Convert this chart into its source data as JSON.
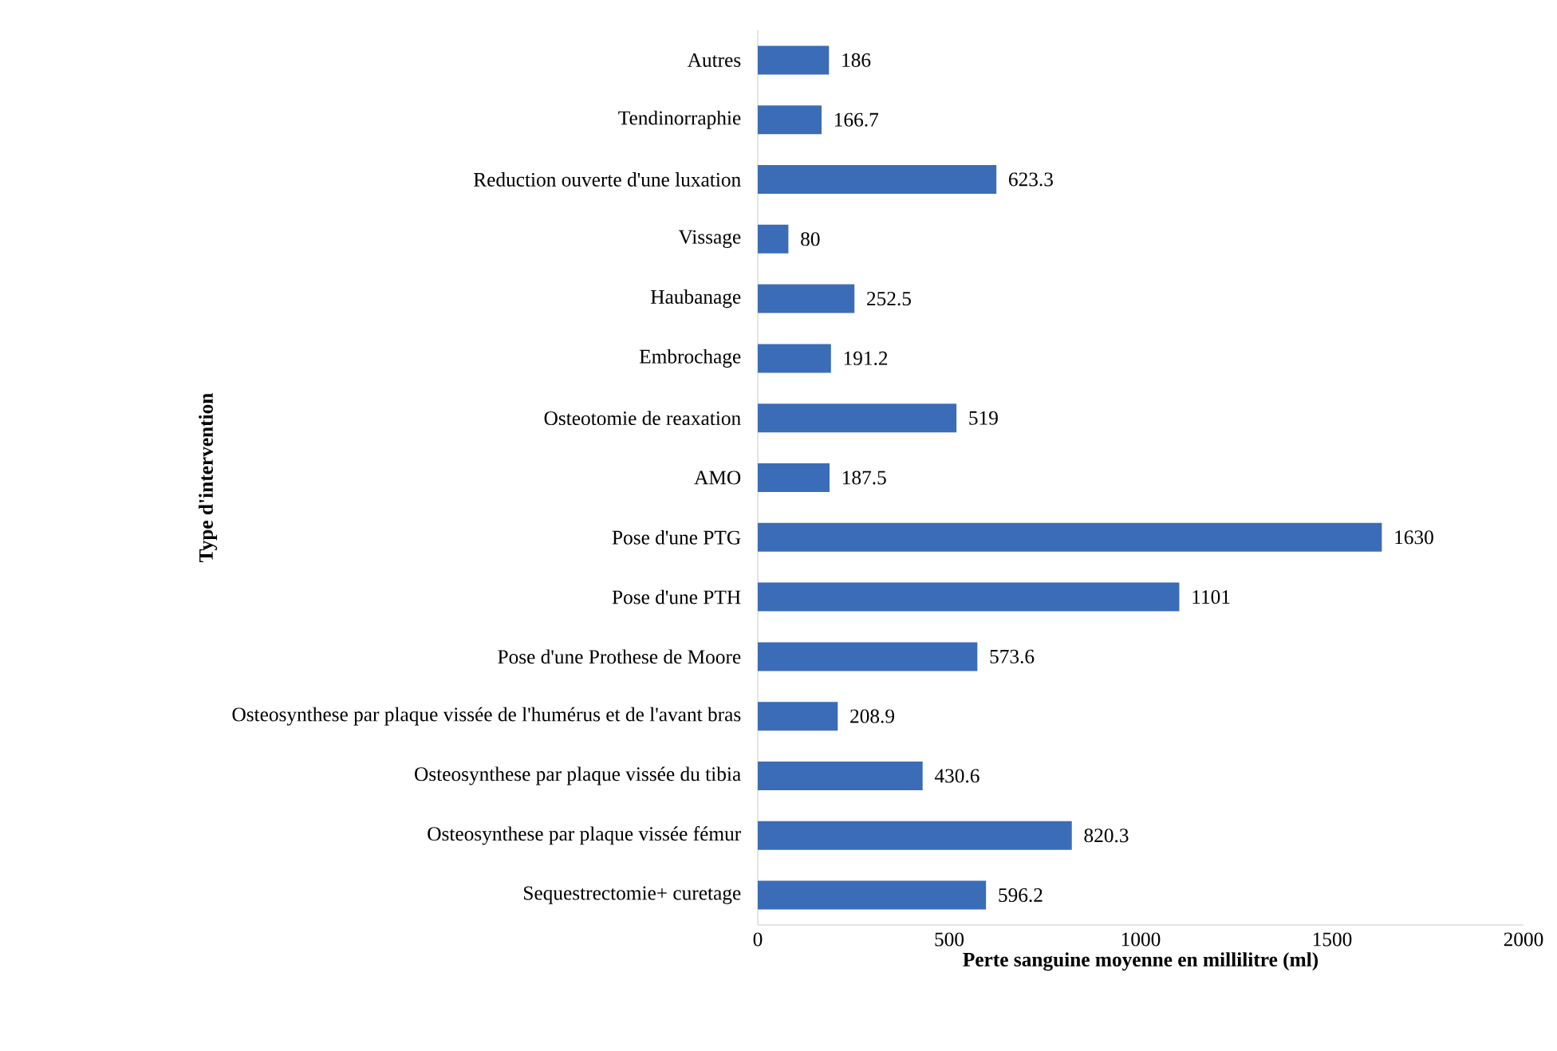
{
  "chart_data": {
    "type": "bar",
    "orientation": "horizontal",
    "xlabel": "Perte sanguine moyenne en millilitre (ml)",
    "ylabel": "Type d'intervention",
    "categories": [
      "Autres",
      "Tendinorraphie",
      "Reduction ouverte d'une luxation",
      "Vissage",
      "Haubanage",
      "Embrochage",
      "Osteotomie de reaxation",
      "AMO",
      "Pose d'une PTG",
      "Pose d'une PTH",
      "Pose d'une Prothese de Moore",
      "Osteosynthese par plaque vissée de l'humérus et de l'avant bras",
      "Osteosynthese par plaque vissée du tibia",
      "Osteosynthese par plaque vissée fémur",
      "Sequestrectomie+ curetage"
    ],
    "values": [
      186,
      166.7,
      623.3,
      80,
      252.5,
      191.2,
      519,
      187.5,
      1630,
      1101,
      573.6,
      208.9,
      430.6,
      820.3,
      596.2
    ],
    "color": "#3b6cb7",
    "xlim": [
      0,
      2000
    ],
    "xticks": [
      0,
      500,
      1000,
      1500,
      2000
    ],
    "data_labels": true,
    "grid": false
  }
}
